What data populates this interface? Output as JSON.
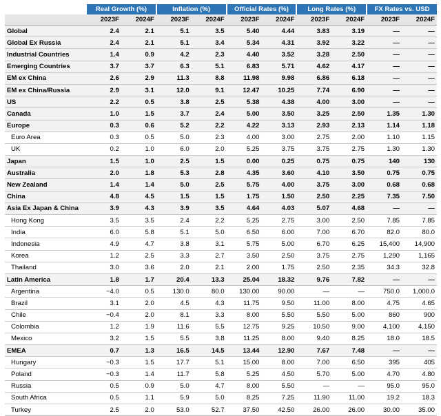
{
  "table": {
    "groups": [
      "Real Growth (%)",
      "Inflation (%)",
      "Official Rates (%)",
      "Long Rates (%)",
      "FX Rates vs. USD"
    ],
    "years": [
      "2023F",
      "2024F",
      "2023F",
      "2024F",
      "2023F",
      "2024F",
      "2023F",
      "2024F",
      "2023F",
      "2024F"
    ],
    "rows": [
      [
        "Global",
        "2.4",
        "2.1",
        "5.1",
        "3.5",
        "5.40",
        "4.44",
        "3.83",
        "3.19",
        "—",
        "—"
      ],
      [
        "Global Ex Russia",
        "2.4",
        "2.1",
        "5.1",
        "3.4",
        "5.34",
        "4.31",
        "3.92",
        "3.22",
        "—",
        "—"
      ],
      [
        "Industrial Countries",
        "1.4",
        "0.9",
        "4.2",
        "2.3",
        "4.40",
        "3.52",
        "3.28",
        "2.50",
        "—",
        "—"
      ],
      [
        "Emerging Countries",
        "3.7",
        "3.7",
        "6.3",
        "5.1",
        "6.83",
        "5.71",
        "4.62",
        "4.17",
        "—",
        "—"
      ],
      [
        "EM ex China",
        "2.6",
        "2.9",
        "11.3",
        "8.8",
        "11.98",
        "9.98",
        "6.86",
        "6.18",
        "—",
        "—"
      ],
      [
        "EM ex China/Russia",
        "2.9",
        "3.1",
        "12.0",
        "9.1",
        "12.47",
        "10.25",
        "7.74",
        "6.90",
        "—",
        "—"
      ],
      [
        "US",
        "2.2",
        "0.5",
        "3.8",
        "2.5",
        "5.38",
        "4.38",
        "4.00",
        "3.00",
        "—",
        "—"
      ],
      [
        "Canada",
        "1.0",
        "1.5",
        "3.7",
        "2.4",
        "5.00",
        "3.50",
        "3.25",
        "2.50",
        "1.35",
        "1.30"
      ],
      [
        "Europe",
        "0.3",
        "0.6",
        "5.2",
        "2.2",
        "4.22",
        "3.13",
        "2.93",
        "2.13",
        "1.14",
        "1.18"
      ],
      [
        "Euro Area",
        "0.3",
        "0.5",
        "5.0",
        "2.3",
        "4.00",
        "3.00",
        "2.75",
        "2.00",
        "1.10",
        "1.15"
      ],
      [
        "UK",
        "0.2",
        "1.0",
        "6.0",
        "2.0",
        "5.25",
        "3.75",
        "3.75",
        "2.75",
        "1.30",
        "1.30"
      ],
      [
        "Japan",
        "1.5",
        "1.0",
        "2.5",
        "1.5",
        "0.00",
        "0.25",
        "0.75",
        "0.75",
        "140",
        "130"
      ],
      [
        "Australia",
        "2.0",
        "1.8",
        "5.3",
        "2.8",
        "4.35",
        "3.60",
        "4.10",
        "3.50",
        "0.75",
        "0.75"
      ],
      [
        "New Zealand",
        "1.4",
        "1.4",
        "5.0",
        "2.5",
        "5.75",
        "4.00",
        "3.75",
        "3.00",
        "0.68",
        "0.68"
      ],
      [
        "China",
        "4.8",
        "4.5",
        "1.5",
        "1.5",
        "1.75",
        "1.50",
        "2.50",
        "2.25",
        "7.35",
        "7.50"
      ],
      [
        "Asia Ex Japan & China",
        "3.9",
        "4.3",
        "3.9",
        "3.5",
        "4.64",
        "4.03",
        "5.07",
        "4.68",
        "—",
        "—"
      ],
      [
        "Hong Kong",
        "3.5",
        "3.5",
        "2.4",
        "2.2",
        "5.25",
        "2.75",
        "3.00",
        "2.50",
        "7.85",
        "7.85"
      ],
      [
        "India",
        "6.0",
        "5.8",
        "5.1",
        "5.0",
        "6.50",
        "6.00",
        "7.00",
        "6.70",
        "82.0",
        "80.0"
      ],
      [
        "Indonesia",
        "4.9",
        "4.7",
        "3.8",
        "3.1",
        "5.75",
        "5.00",
        "6.70",
        "6.25",
        "15,400",
        "14,900"
      ],
      [
        "Korea",
        "1.2",
        "2.5",
        "3.3",
        "2.7",
        "3.50",
        "2.50",
        "3.75",
        "2.75",
        "1,290",
        "1,165"
      ],
      [
        "Thailand",
        "3.0",
        "3.6",
        "2.0",
        "2.1",
        "2.00",
        "1.75",
        "2.50",
        "2.35",
        "34.3",
        "32.8"
      ],
      [
        "Latin America",
        "1.8",
        "1.7",
        "20.4",
        "13.3",
        "25.04",
        "18.32",
        "9.76",
        "7.82",
        "—",
        "—"
      ],
      [
        "Argentina",
        "−4.0",
        "0.5",
        "130.0",
        "80.0",
        "130.00",
        "90.00",
        "—",
        "—",
        "750.0",
        "1,000.0"
      ],
      [
        "Brazil",
        "3.1",
        "2.0",
        "4.5",
        "4.3",
        "11.75",
        "9.50",
        "11.00",
        "8.00",
        "4.75",
        "4.65"
      ],
      [
        "Chile",
        "−0.4",
        "2.0",
        "8.1",
        "3.3",
        "8.00",
        "5.50",
        "5.50",
        "5.00",
        "860",
        "900"
      ],
      [
        "Colombia",
        "1.2",
        "1.9",
        "11.6",
        "5.5",
        "12.75",
        "9.25",
        "10.50",
        "9.00",
        "4,100",
        "4,150"
      ],
      [
        "Mexico",
        "3.2",
        "1.5",
        "5.5",
        "3.8",
        "11.25",
        "8.00",
        "9.40",
        "8.25",
        "18.0",
        "18.5"
      ],
      [
        "EMEA",
        "0.7",
        "1.3",
        "16.5",
        "14.5",
        "13.44",
        "12.90",
        "7.67",
        "7.48",
        "—",
        "—"
      ],
      [
        "Hungary",
        "−0.3",
        "1.5",
        "17.7",
        "5.1",
        "15.00",
        "8.00",
        "7.00",
        "6.50",
        "395",
        "405"
      ],
      [
        "Poland",
        "−0.3",
        "1.4",
        "11.7",
        "5.8",
        "5.25",
        "4.50",
        "5.70",
        "5.00",
        "4.70",
        "4.80"
      ],
      [
        "Russia",
        "0.5",
        "0.9",
        "5.0",
        "4.7",
        "8.00",
        "5.50",
        "—",
        "—",
        "95.0",
        "95.0"
      ],
      [
        "South Africa",
        "0.5",
        "1.1",
        "5.9",
        "5.0",
        "8.25",
        "7.25",
        "11.90",
        "11.00",
        "19.2",
        "18.3"
      ],
      [
        "Turkey",
        "2.5",
        "2.0",
        "53.0",
        "52.7",
        "37.50",
        "42.50",
        "26.00",
        "26.00",
        "30.00",
        "35.00"
      ]
    ]
  }
}
